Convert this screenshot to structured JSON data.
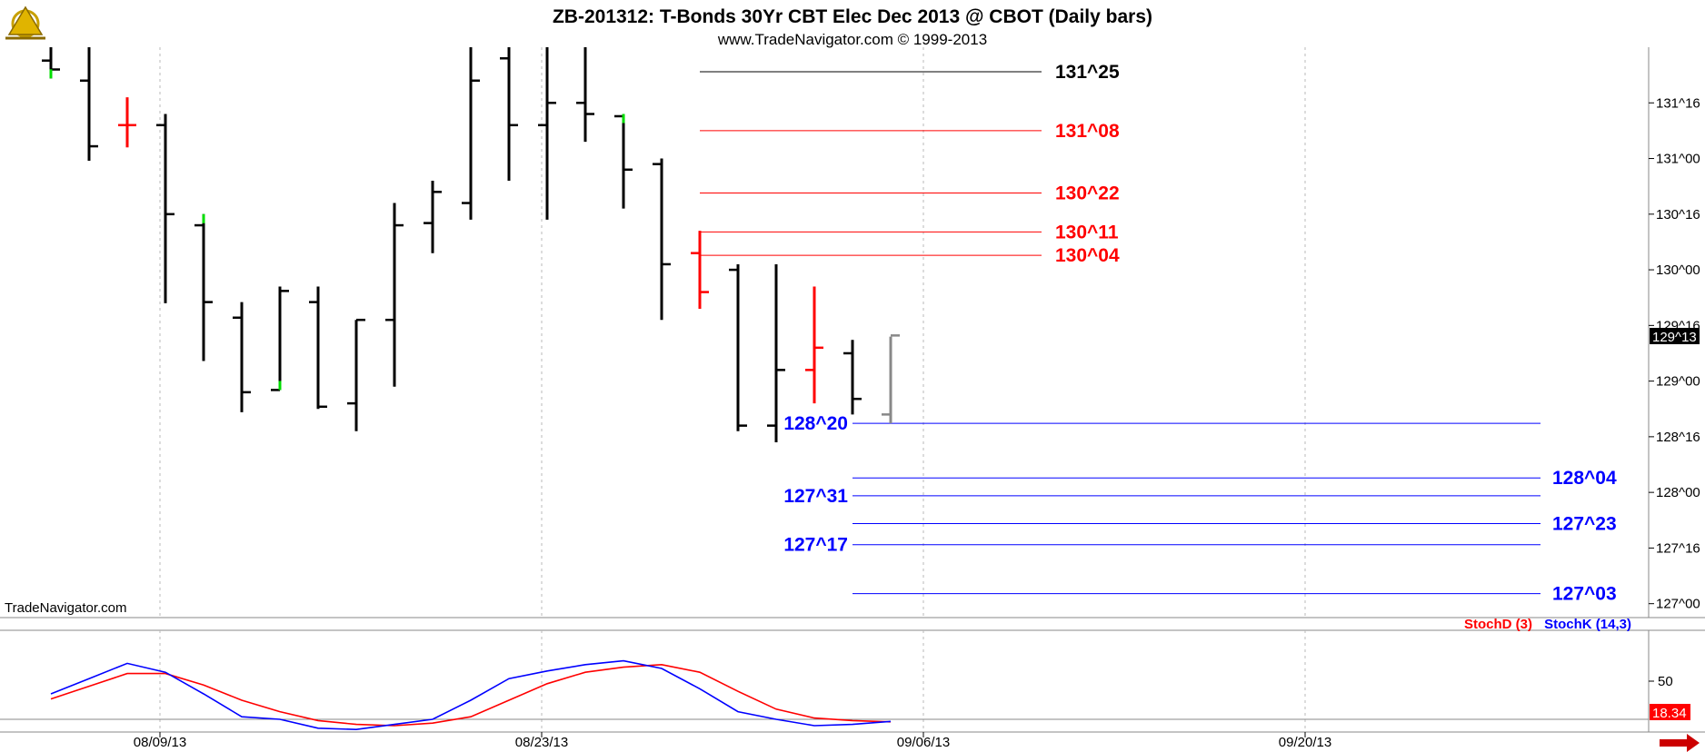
{
  "header": {
    "title": "ZB-201312:  T-Bonds 30Yr CBT Elec Dec 2013 @ CBOT  (Daily bars)",
    "subtitle": "www.TradeNavigator.com © 1999-2013",
    "watermark": "TradeNavigator.com",
    "logo_icon": "sextant-logo-icon"
  },
  "colors": {
    "up_bar": "#000000",
    "down_bar": "#ff0000",
    "resistance": "#ff0000",
    "support": "#0000ff",
    "stochD": "#ff0000",
    "stochK": "#0000ff",
    "highlight_green": "#00dd00"
  },
  "chart_data": [
    {
      "type": "ohlc",
      "title": "ZB-201312:  T-Bonds 30Yr CBT Elec Dec 2013 @ CBOT  (Daily bars)",
      "price_unit": "points^32nds",
      "ylim": [
        126.875,
        132.0
      ],
      "y_ticks": [
        {
          "label": "131^16",
          "value": 131.5
        },
        {
          "label": "131^00",
          "value": 131.0
        },
        {
          "label": "130^16",
          "value": 130.5
        },
        {
          "label": "130^00",
          "value": 130.0
        },
        {
          "label": "129^16",
          "value": 129.5
        },
        {
          "label": "129^00",
          "value": 129.0
        },
        {
          "label": "128^16",
          "value": 128.5
        },
        {
          "label": "128^00",
          "value": 128.0
        },
        {
          "label": "127^16",
          "value": 127.5
        },
        {
          "label": "127^00",
          "value": 127.0
        }
      ],
      "x_ticks": [
        {
          "label": "08/09/13",
          "bar": 2
        },
        {
          "label": "08/23/13",
          "bar": 12
        },
        {
          "label": "09/06/13",
          "bar": 22
        },
        {
          "label": "09/20/13",
          "bar": 32
        }
      ],
      "last_price_label": "129^13",
      "bars": [
        {
          "o": 131.88,
          "h": 132.2,
          "l": 131.72,
          "c": 131.8,
          "color": "up",
          "green_low": true
        },
        {
          "o": 131.7,
          "h": 132.2,
          "l": 130.98,
          "c": 131.11,
          "color": "up"
        },
        {
          "o": 131.3,
          "h": 131.55,
          "l": 131.1,
          "c": 131.3,
          "color": "down"
        },
        {
          "o": 131.3,
          "h": 131.4,
          "l": 129.7,
          "c": 130.5,
          "color": "up"
        },
        {
          "o": 130.4,
          "h": 130.5,
          "l": 129.18,
          "c": 129.71,
          "color": "up",
          "green_high": true
        },
        {
          "o": 129.57,
          "h": 129.71,
          "l": 128.72,
          "c": 128.9,
          "color": "up"
        },
        {
          "o": 128.92,
          "h": 129.85,
          "l": 128.92,
          "c": 129.81,
          "color": "up",
          "green_low": true
        },
        {
          "o": 129.71,
          "h": 129.85,
          "l": 128.75,
          "c": 128.77,
          "color": "up"
        },
        {
          "o": 128.8,
          "h": 129.55,
          "l": 128.55,
          "c": 129.55,
          "color": "up"
        },
        {
          "o": 129.55,
          "h": 130.6,
          "l": 128.95,
          "c": 130.4,
          "color": "up"
        },
        {
          "o": 130.42,
          "h": 130.8,
          "l": 130.15,
          "c": 130.7,
          "color": "up"
        },
        {
          "o": 130.6,
          "h": 132.2,
          "l": 130.45,
          "c": 131.7,
          "color": "up"
        },
        {
          "o": 131.9,
          "h": 132.2,
          "l": 130.8,
          "c": 131.3,
          "color": "up"
        },
        {
          "o": 131.3,
          "h": 132.0,
          "l": 130.45,
          "c": 131.5,
          "color": "up"
        },
        {
          "o": 131.5,
          "h": 132.2,
          "l": 131.15,
          "c": 131.4,
          "color": "up"
        },
        {
          "o": 131.38,
          "h": 131.4,
          "l": 130.55,
          "c": 130.9,
          "color": "up",
          "green_high": true
        },
        {
          "o": 130.95,
          "h": 131.0,
          "l": 129.55,
          "c": 130.05,
          "color": "up"
        },
        {
          "o": 130.15,
          "h": 130.35,
          "l": 129.65,
          "c": 129.8,
          "color": "down"
        },
        {
          "o": 130.0,
          "h": 130.05,
          "l": 128.55,
          "c": 128.6,
          "color": "up"
        },
        {
          "o": 128.6,
          "h": 130.05,
          "l": 128.45,
          "c": 129.1,
          "color": "up"
        },
        {
          "o": 129.1,
          "h": 129.85,
          "l": 128.8,
          "c": 129.3,
          "color": "down"
        },
        {
          "o": 129.25,
          "h": 129.37,
          "l": 128.7,
          "c": 128.84,
          "color": "up"
        },
        {
          "o": 128.7,
          "h": 129.4,
          "l": 128.62,
          "c": 129.41,
          "color": "gray"
        }
      ],
      "levels": [
        {
          "label": "131^25",
          "value": 131.78,
          "color": "black",
          "side": "right",
          "x_start_bar": 18,
          "x_end_bar": 26
        },
        {
          "label": "131^08",
          "value": 131.25,
          "color": "red",
          "side": "right",
          "x_start_bar": 18,
          "x_end_bar": 26
        },
        {
          "label": "130^22",
          "value": 130.69,
          "color": "red",
          "side": "right",
          "x_start_bar": 18,
          "x_end_bar": 26
        },
        {
          "label": "130^11",
          "value": 130.34,
          "color": "red",
          "side": "right",
          "x_start_bar": 18,
          "x_end_bar": 26
        },
        {
          "label": "130^04",
          "value": 130.13,
          "color": "red",
          "side": "right",
          "x_start_bar": 18,
          "x_end_bar": 26
        },
        {
          "label": "128^20",
          "value": 128.62,
          "color": "blue",
          "side": "left",
          "x_start_bar": 22,
          "x_end_bar": 40
        },
        {
          "label": "128^04",
          "value": 128.13,
          "color": "blue",
          "side": "right",
          "x_start_bar": 22,
          "x_end_bar": 40
        },
        {
          "label": "127^31",
          "value": 127.97,
          "color": "blue",
          "side": "left",
          "x_start_bar": 22,
          "x_end_bar": 40
        },
        {
          "label": "127^23",
          "value": 127.72,
          "color": "blue",
          "side": "right",
          "x_start_bar": 22,
          "x_end_bar": 40
        },
        {
          "label": "127^17",
          "value": 127.53,
          "color": "blue",
          "side": "left",
          "x_start_bar": 22,
          "x_end_bar": 40
        },
        {
          "label": "127^03",
          "value": 127.09,
          "color": "blue",
          "side": "right",
          "x_start_bar": 22,
          "x_end_bar": 40
        }
      ]
    },
    {
      "type": "line",
      "legend": [
        {
          "name": "StochD (3)",
          "color": "red"
        },
        {
          "name": "StochK (14,3)",
          "color": "blue"
        }
      ],
      "ylim": [
        10,
        90
      ],
      "y_ticks": [
        {
          "label": "50",
          "value": 50
        }
      ],
      "reference_line": 20,
      "last_value_label": "18.34",
      "series": [
        {
          "name": "StochD (3)",
          "values": [
            36,
            46,
            56,
            56,
            47,
            35,
            26,
            19,
            16,
            15,
            17,
            22,
            35,
            48,
            57,
            61,
            63,
            57,
            42,
            28,
            21,
            19,
            18
          ]
        },
        {
          "name": "StochK (14,3)",
          "values": [
            40,
            52,
            64,
            57,
            40,
            22,
            20,
            13,
            12,
            16,
            20,
            35,
            52,
            58,
            63,
            66,
            60,
            44,
            26,
            20,
            15,
            16,
            18.34
          ]
        }
      ]
    }
  ]
}
